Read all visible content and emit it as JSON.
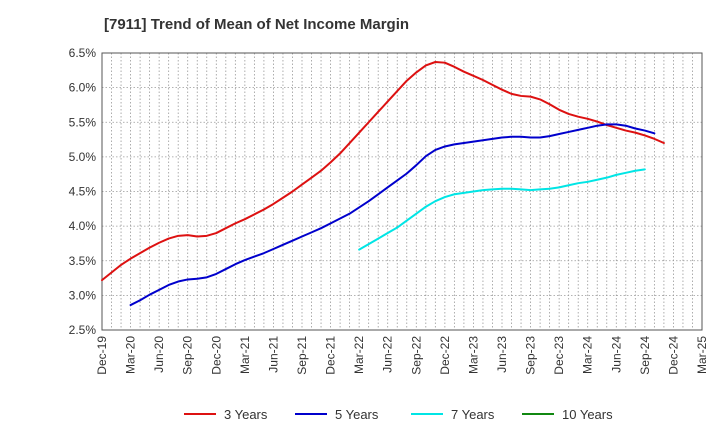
{
  "chart_data": {
    "type": "line",
    "title": "[7911]  Trend of Mean of Net Income Margin",
    "xlabel": "",
    "ylabel": "",
    "x_ticks": [
      "Dec-19",
      "Mar-20",
      "Jun-20",
      "Sep-20",
      "Dec-20",
      "Mar-21",
      "Jun-21",
      "Sep-21",
      "Dec-21",
      "Mar-22",
      "Jun-22",
      "Sep-22",
      "Dec-22",
      "Mar-23",
      "Jun-23",
      "Sep-23",
      "Dec-23",
      "Mar-24",
      "Jun-24",
      "Sep-24",
      "Dec-24",
      "Mar-25"
    ],
    "y_ticks": [
      "2.5%",
      "3.0%",
      "3.5%",
      "4.0%",
      "4.5%",
      "5.0%",
      "5.5%",
      "6.0%",
      "6.5%"
    ],
    "ylim": [
      2.5,
      6.5
    ],
    "grid": true,
    "legend_position": "bottom",
    "series": [
      {
        "name": "3 Years",
        "color": "#dd1111",
        "start_index": 0,
        "values": [
          3.22,
          3.33,
          3.44,
          3.53,
          3.61,
          3.69,
          3.76,
          3.82,
          3.86,
          3.87,
          3.85,
          3.86,
          3.9,
          3.97,
          4.04,
          4.1,
          4.17,
          4.24,
          4.32,
          4.41,
          4.5,
          4.6,
          4.7,
          4.8,
          4.92,
          5.05,
          5.2,
          5.35,
          5.5,
          5.65,
          5.8,
          5.95,
          6.1,
          6.22,
          6.32,
          6.37,
          6.36,
          6.3,
          6.23,
          6.17,
          6.11,
          6.04,
          5.97,
          5.91,
          5.88,
          5.87,
          5.83,
          5.76,
          5.68,
          5.62,
          5.58,
          5.55,
          5.51,
          5.46,
          5.42,
          5.38,
          5.35,
          5.31,
          5.26,
          5.2
        ]
      },
      {
        "name": "5 Years",
        "color": "#0000cc",
        "start_index": 3,
        "values": [
          2.86,
          2.93,
          3.01,
          3.08,
          3.15,
          3.2,
          3.23,
          3.24,
          3.26,
          3.31,
          3.38,
          3.45,
          3.51,
          3.56,
          3.61,
          3.67,
          3.73,
          3.79,
          3.85,
          3.91,
          3.97,
          4.04,
          4.11,
          4.18,
          4.27,
          4.36,
          4.46,
          4.56,
          4.66,
          4.76,
          4.88,
          5.01,
          5.1,
          5.15,
          5.18,
          5.2,
          5.22,
          5.24,
          5.26,
          5.28,
          5.29,
          5.29,
          5.28,
          5.28,
          5.3,
          5.33,
          5.36,
          5.39,
          5.42,
          5.45,
          5.47,
          5.47,
          5.45,
          5.41,
          5.38,
          5.34
        ]
      },
      {
        "name": "7 Years",
        "color": "#00e5e5",
        "start_index": 27,
        "values": [
          3.66,
          3.74,
          3.82,
          3.9,
          3.98,
          4.08,
          4.18,
          4.28,
          4.36,
          4.42,
          4.46,
          4.48,
          4.5,
          4.52,
          4.53,
          4.54,
          4.54,
          4.53,
          4.52,
          4.53,
          4.54,
          4.56,
          4.59,
          4.62,
          4.64,
          4.67,
          4.7,
          4.74,
          4.77,
          4.8,
          4.82
        ]
      },
      {
        "name": "10 Years",
        "color": "#118811",
        "start_index": 0,
        "values": []
      }
    ]
  }
}
